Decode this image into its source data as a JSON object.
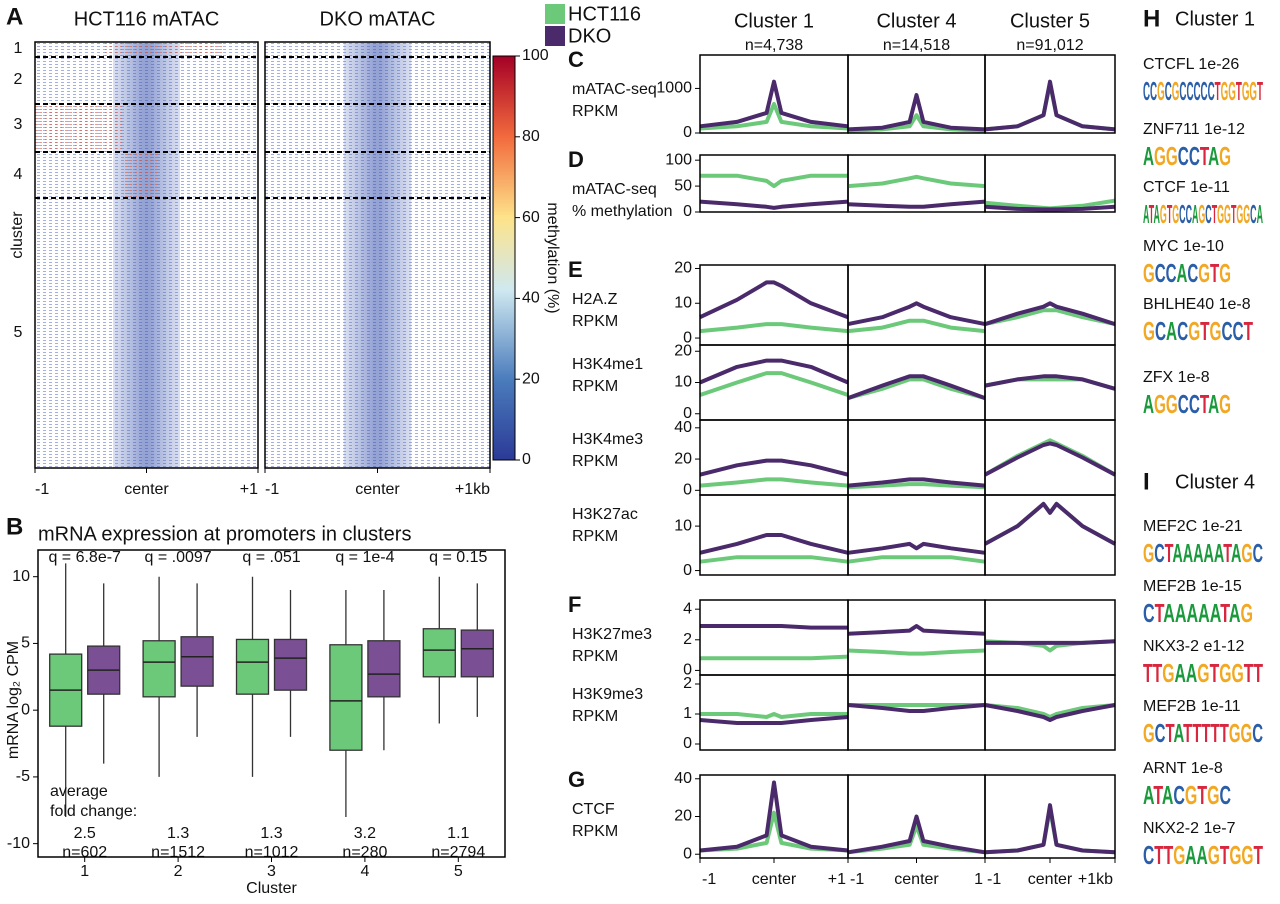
{
  "chart_data": [
    {
      "type": "heatmap",
      "panel": "A",
      "titles": [
        "HCT116 mATAC",
        "DKO mATAC"
      ],
      "row_labels": [
        "1",
        "2",
        "3",
        "4",
        "5"
      ],
      "row_title": "cluster",
      "xticks": [
        [
          {
            "value": -1,
            "label": "-1"
          },
          {
            "value": 0,
            "label": "center"
          },
          {
            "value": 1,
            "label": "+1"
          }
        ],
        [
          {
            "value": -1,
            "label": "-1"
          },
          {
            "value": 0,
            "label": "center"
          },
          {
            "value": 1,
            "label": "+1kb"
          }
        ]
      ],
      "xlim": [
        -1,
        1
      ],
      "colorbar": {
        "label": "methylation (%)",
        "lim": [
          0,
          100
        ],
        "ticks": [
          0,
          20,
          40,
          60,
          80,
          100
        ]
      }
    },
    {
      "type": "box",
      "panel": "B",
      "title": "mRNA expression at promoters in clusters",
      "ylabel": "mRNA log₂ CPM",
      "xlabel": "Cluster",
      "categories": [
        "1",
        "2",
        "3",
        "4",
        "5"
      ],
      "ylim": [
        -11,
        12
      ],
      "yticks": [
        -10,
        -5,
        0,
        5,
        10
      ],
      "series": [
        {
          "name": "HCT116",
          "color": "#6cc97a",
          "values": [
            {
              "low": -8,
              "q1": -1.2,
              "median": 1.5,
              "q3": 4.2,
              "high": 11
            },
            {
              "low": -5,
              "q1": 1,
              "median": 3.6,
              "q3": 5.2,
              "high": 10
            },
            {
              "low": -5,
              "q1": 1.2,
              "median": 3.6,
              "q3": 5.3,
              "high": 10
            },
            {
              "low": -8,
              "q1": -3,
              "median": 0.7,
              "q3": 4.9,
              "high": 9
            },
            {
              "low": -1,
              "q1": 2.5,
              "median": 4.5,
              "q3": 6.1,
              "high": 10
            }
          ]
        },
        {
          "name": "DKO",
          "color": "#7a4f94",
          "values": [
            {
              "low": -4,
              "q1": 1.2,
              "median": 3,
              "q3": 4.8,
              "high": 9.5
            },
            {
              "low": -2,
              "q1": 1.8,
              "median": 4,
              "q3": 5.5,
              "high": 9.5
            },
            {
              "low": -2,
              "q1": 1.5,
              "median": 3.9,
              "q3": 5.3,
              "high": 9
            },
            {
              "low": -3,
              "q1": 1,
              "median": 2.7,
              "q3": 5.2,
              "high": 9
            },
            {
              "low": -0.5,
              "q1": 2.5,
              "median": 4.6,
              "q3": 6,
              "high": 9.5
            }
          ]
        }
      ],
      "q_labels": [
        "q = 6.8e-7",
        "q = .0097",
        "q = .051",
        "q = 1e-4",
        "q = 0.15"
      ],
      "fold_change_label": [
        "average",
        "fold change:"
      ],
      "fold_changes": [
        "2.5",
        "1.3",
        "1.3",
        "3.2",
        "1.1"
      ],
      "n_labels": [
        "n=602",
        "n=1512",
        "n=1012",
        "n=280",
        "n=2794"
      ]
    },
    {
      "type": "line",
      "series": [
        {
          "name": "HCT116",
          "color": "#6cc97a"
        },
        {
          "name": "DKO",
          "color": "#4b2a6b"
        }
      ],
      "columns": [
        {
          "title": "Cluster 1",
          "subtitle": "n=4,738",
          "xticks": [
            {
              "value": -1,
              "label": "-1"
            },
            {
              "value": 0,
              "label": "center"
            },
            {
              "value": 1,
              "label": "+1"
            }
          ]
        },
        {
          "title": "Cluster 4",
          "subtitle": "n=14,518",
          "xticks": [
            {
              "value": -1,
              "label": "-1"
            },
            {
              "value": 0,
              "label": "center"
            },
            {
              "value": 1,
              "label": "1"
            }
          ]
        },
        {
          "title": "Cluster 5",
          "subtitle": "n=91,012",
          "xticks": [
            {
              "value": -1,
              "label": "-1"
            },
            {
              "value": 0,
              "label": "center"
            },
            {
              "value": 1,
              "label": "+1kb"
            }
          ]
        }
      ],
      "xlim": [
        -1,
        1
      ],
      "x": [
        -1,
        -0.5,
        -0.1,
        0,
        0.1,
        0.5,
        1
      ],
      "rows": [
        {
          "panel": "C",
          "label": [
            "mATAC-seq",
            "RPKM"
          ],
          "ylim": [
            0,
            1750
          ],
          "yticks": [
            0,
            1000
          ],
          "values": [
            [
              [
                100,
                150,
                250,
                650,
                250,
                150,
                100
              ],
              [
                150,
                250,
                450,
                1150,
                450,
                250,
                150
              ]
            ],
            [
              [
                50,
                80,
                150,
                400,
                150,
                80,
                50
              ],
              [
                80,
                120,
                250,
                850,
                250,
                120,
                80
              ]
            ],
            [
              [
                80,
                150,
                400,
                1100,
                400,
                150,
                80
              ],
              [
                80,
                150,
                400,
                1150,
                400,
                150,
                80
              ]
            ]
          ]
        },
        {
          "panel": "D",
          "label": [
            "mATAC-seq",
            "% methylation"
          ],
          "ylim": [
            0,
            110
          ],
          "yticks": [
            0,
            50,
            100
          ],
          "values": [
            [
              [
                70,
                70,
                60,
                50,
                60,
                70,
                70
              ],
              [
                20,
                15,
                10,
                8,
                10,
                15,
                20
              ]
            ],
            [
              [
                50,
                55,
                65,
                68,
                65,
                55,
                50
              ],
              [
                15,
                12,
                10,
                10,
                10,
                15,
                20
              ]
            ],
            [
              [
                18,
                12,
                8,
                7,
                8,
                12,
                22
              ],
              [
                10,
                6,
                5,
                5,
                5,
                6,
                10
              ]
            ]
          ]
        },
        {
          "panel": "E",
          "label": [
            "H2A.Z",
            "RPKM"
          ],
          "ylim": [
            -2,
            21
          ],
          "yticks": [
            0,
            10,
            20
          ],
          "values": [
            [
              [
                2,
                3,
                4,
                4,
                4,
                3,
                2
              ],
              [
                6,
                11,
                16,
                16,
                15,
                10,
                6
              ]
            ],
            [
              [
                2,
                3,
                5,
                5,
                5,
                3,
                2
              ],
              [
                4,
                6,
                9,
                10,
                9,
                6,
                4
              ]
            ],
            [
              [
                4,
                6,
                8,
                8,
                8,
                6,
                4
              ],
              [
                4,
                7,
                9,
                10,
                9,
                7,
                4
              ]
            ]
          ]
        },
        {
          "label": [
            "H3K4me1",
            "RPKM"
          ],
          "ylim": [
            -2,
            22
          ],
          "yticks": [
            0,
            10,
            20
          ],
          "values": [
            [
              [
                6,
                10,
                13,
                13,
                13,
                10,
                6
              ],
              [
                10,
                15,
                17,
                17,
                17,
                15,
                10
              ]
            ],
            [
              [
                5,
                8,
                11,
                11,
                11,
                8,
                5
              ],
              [
                5,
                9,
                12,
                12,
                12,
                9,
                5
              ]
            ],
            [
              [
                9,
                11,
                11,
                11,
                11,
                11,
                8
              ],
              [
                9,
                11,
                12,
                12,
                12,
                11,
                8
              ]
            ]
          ]
        },
        {
          "label": [
            "H3K4me3",
            "RPKM"
          ],
          "ylim": [
            -3,
            45
          ],
          "yticks": [
            0,
            20,
            40
          ],
          "values": [
            [
              [
                3,
                5,
                7,
                7,
                7,
                5,
                3
              ],
              [
                10,
                16,
                19,
                19,
                19,
                16,
                10
              ]
            ],
            [
              [
                2,
                3,
                4,
                4,
                4,
                3,
                2
              ],
              [
                3,
                5,
                7,
                7,
                7,
                5,
                3
              ]
            ],
            [
              [
                10,
                22,
                30,
                32,
                30,
                22,
                10
              ],
              [
                10,
                21,
                29,
                30,
                29,
                21,
                10
              ]
            ]
          ]
        },
        {
          "label": [
            "H3K27ac",
            "RPKM"
          ],
          "ylim": [
            -1,
            17
          ],
          "yticks": [
            0,
            10
          ],
          "values": [
            [
              [
                2,
                3,
                3,
                3,
                3,
                3,
                2
              ],
              [
                4,
                6,
                8,
                8,
                8,
                6,
                4
              ]
            ],
            [
              [
                2,
                3,
                3,
                3,
                3,
                3,
                2
              ],
              [
                4,
                5,
                6,
                5,
                6,
                5,
                4
              ]
            ],
            [
              [
                6,
                10,
                15,
                13,
                15,
                10,
                6
              ],
              [
                6,
                10,
                15,
                13,
                15,
                10,
                6
              ]
            ]
          ]
        },
        {
          "panel": "F",
          "label": [
            "H3K27me3",
            "RPKM"
          ],
          "ylim": [
            -0.3,
            4.6
          ],
          "yticks": [
            0,
            2,
            4
          ],
          "values": [
            [
              [
                0.8,
                0.8,
                0.8,
                0.8,
                0.8,
                0.8,
                0.9
              ],
              [
                2.9,
                2.9,
                2.9,
                2.9,
                2.9,
                2.8,
                2.8
              ]
            ],
            [
              [
                1.3,
                1.2,
                1.1,
                1.1,
                1.1,
                1.2,
                1.3
              ],
              [
                2.4,
                2.5,
                2.6,
                2.9,
                2.6,
                2.5,
                2.4
              ]
            ],
            [
              [
                1.9,
                1.8,
                1.6,
                1.3,
                1.6,
                1.8,
                1.9
              ],
              [
                1.8,
                1.8,
                1.8,
                1.8,
                1.8,
                1.8,
                1.9
              ]
            ]
          ]
        },
        {
          "label": [
            "H3K9me3",
            "RPKM"
          ],
          "ylim": [
            -0.2,
            2.3
          ],
          "yticks": [
            0,
            1,
            2
          ],
          "values": [
            [
              [
                1.0,
                1.0,
                0.9,
                1.0,
                0.9,
                1.0,
                1.0
              ],
              [
                0.8,
                0.7,
                0.7,
                0.7,
                0.7,
                0.8,
                0.9
              ]
            ],
            [
              [
                1.3,
                1.3,
                1.3,
                1.3,
                1.3,
                1.3,
                1.3
              ],
              [
                1.3,
                1.2,
                1.1,
                1.1,
                1.1,
                1.2,
                1.3
              ]
            ],
            [
              [
                1.3,
                1.2,
                1.0,
                0.9,
                1.0,
                1.2,
                1.3
              ],
              [
                1.3,
                1.1,
                0.9,
                0.8,
                0.9,
                1.1,
                1.3
              ]
            ]
          ]
        },
        {
          "panel": "G",
          "label": [
            "CTCF",
            "RPKM"
          ],
          "ylim": [
            -2,
            42
          ],
          "yticks": [
            0,
            20,
            40
          ],
          "values": [
            [
              [
                2,
                3,
                6,
                22,
                6,
                3,
                2
              ],
              [
                2,
                4,
                10,
                38,
                10,
                4,
                2
              ]
            ],
            [
              [
                1,
                3,
                5,
                15,
                5,
                3,
                1
              ],
              [
                1,
                4,
                7,
                20,
                7,
                4,
                1
              ]
            ],
            [
              [
                1,
                2,
                5,
                24,
                5,
                2,
                1
              ],
              [
                1,
                2,
                5,
                26,
                5,
                2,
                1
              ]
            ]
          ]
        }
      ]
    }
  ],
  "motifs": [
    {
      "panel": "H",
      "title": "Cluster 1",
      "items": [
        {
          "label": "CTCFL 1e-26",
          "logo": "CCGCGCCCCCTGGTGGT"
        },
        {
          "label": "ZNF711 1e-12",
          "logo": "AGGCCTAG"
        },
        {
          "label": "CTCF 1e-11",
          "logo": "ATAGTGCCAGCTGGTGGCA"
        },
        {
          "label": "MYC 1e-10",
          "logo": "GCCACGTG"
        },
        {
          "label": "BHLHE40 1e-8",
          "logo": "GCACGTGCCT"
        },
        {
          "label": "ZFX 1e-8",
          "logo": "AGGCCTAG"
        }
      ]
    },
    {
      "panel": "I",
      "title": "Cluster 4",
      "items": [
        {
          "label": "MEF2C 1e-21",
          "logo": "GCTAAAAATAGC"
        },
        {
          "label": "MEF2B 1e-15",
          "logo": "CTAAAAATAG"
        },
        {
          "label": "NKX3-2 e1-12",
          "logo": "TTGAAGTGGTT"
        },
        {
          "label": "MEF2B 1e-11",
          "logo": "GCTATTTTTGGC"
        },
        {
          "label": "ARNT 1e-8",
          "logo": "ATACGTGC"
        },
        {
          "label": "NKX2-2 1e-7",
          "logo": "CTTGAAGTGGT"
        }
      ]
    }
  ]
}
